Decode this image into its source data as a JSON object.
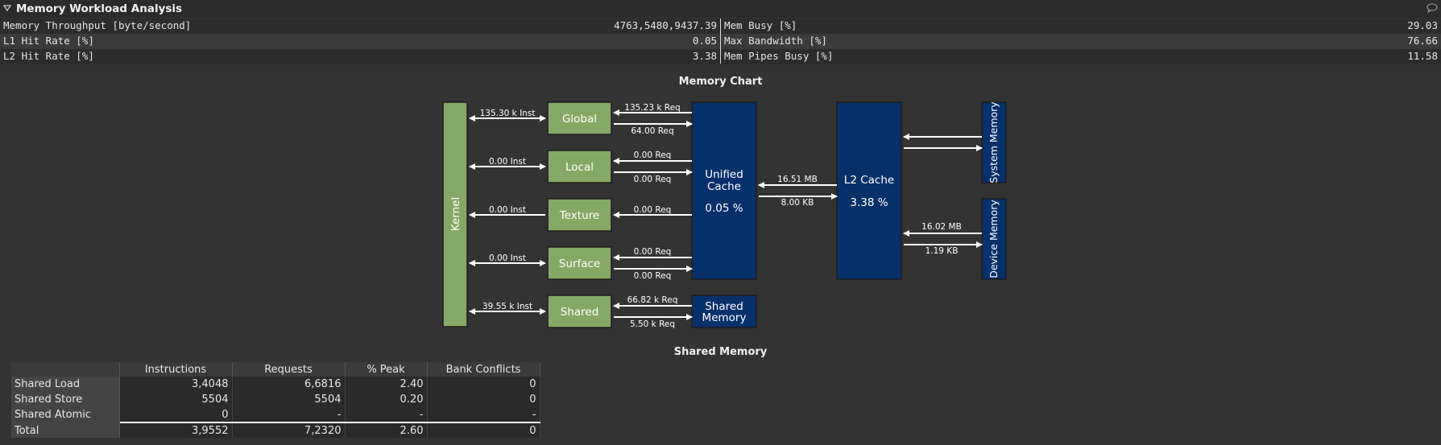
{
  "section": {
    "title": "Memory Workload Analysis"
  },
  "metrics": {
    "left": [
      {
        "label": "Memory Throughput [byte/second]",
        "value": "4763,5480,9437.39"
      },
      {
        "label": "L1 Hit Rate [%]",
        "value": "0.05"
      },
      {
        "label": "L2 Hit Rate [%]",
        "value": "3.38"
      }
    ],
    "right": [
      {
        "label": "Mem Busy [%]",
        "value": "29.03"
      },
      {
        "label": "Max Bandwidth [%]",
        "value": "76.66"
      },
      {
        "label": "Mem Pipes Busy [%]",
        "value": "11.58"
      }
    ]
  },
  "memory_chart": {
    "title": "Memory Chart",
    "kernel": "Kernel",
    "units": {
      "global": {
        "name": "Global",
        "inst": "135.30 k Inst",
        "req_in": "135.23 k Req",
        "req_out": "64.00 Req"
      },
      "local": {
        "name": "Local",
        "inst": "0.00 Inst",
        "req_in": "0.00 Req",
        "req_out": "0.00 Req"
      },
      "texture": {
        "name": "Texture",
        "inst": "0.00 Inst",
        "req_in": "0.00 Req"
      },
      "surface": {
        "name": "Surface",
        "inst": "0.00 Inst",
        "req_in": "0.00 Req",
        "req_out": "0.00 Req"
      },
      "shared": {
        "name": "Shared",
        "inst": "39.55 k Inst",
        "req_in": "66.82 k Req",
        "req_out": "5.50 k Req"
      }
    },
    "unified_cache": {
      "line1": "Unified",
      "line2": "Cache",
      "hit": "0.05 %",
      "l2_in": "16.51 MB",
      "l2_out": "8.00 KB"
    },
    "shared_memory": {
      "line1": "Shared",
      "line2": "Memory"
    },
    "l2_cache": {
      "name": "L2 Cache",
      "hit": "3.38 %"
    },
    "system_memory": {
      "name": "System Memory"
    },
    "device_memory": {
      "name": "Device Memory",
      "in": "16.02 MB",
      "out": "1.19 KB"
    }
  },
  "shared_memory_table": {
    "title": "Shared Memory",
    "columns": [
      "",
      "Instructions",
      "Requests",
      "% Peak",
      "Bank Conflicts"
    ],
    "rows": [
      {
        "label": "Shared Load",
        "instructions": "3,4048",
        "requests": "6,6816",
        "peak": "2.40",
        "bank_conflicts": "0"
      },
      {
        "label": "Shared Store",
        "instructions": "5504",
        "requests": "5504",
        "peak": "0.20",
        "bank_conflicts": "0"
      },
      {
        "label": "Shared Atomic",
        "instructions": "0",
        "requests": "-",
        "peak": "-",
        "bank_conflicts": "-"
      },
      {
        "label": "Total",
        "instructions": "3,9552",
        "requests": "7,2320",
        "peak": "2.60",
        "bank_conflicts": "0"
      }
    ]
  },
  "colors": {
    "unit_green": "#86a866",
    "cache_blue": "#06306a",
    "background": "#333333"
  }
}
